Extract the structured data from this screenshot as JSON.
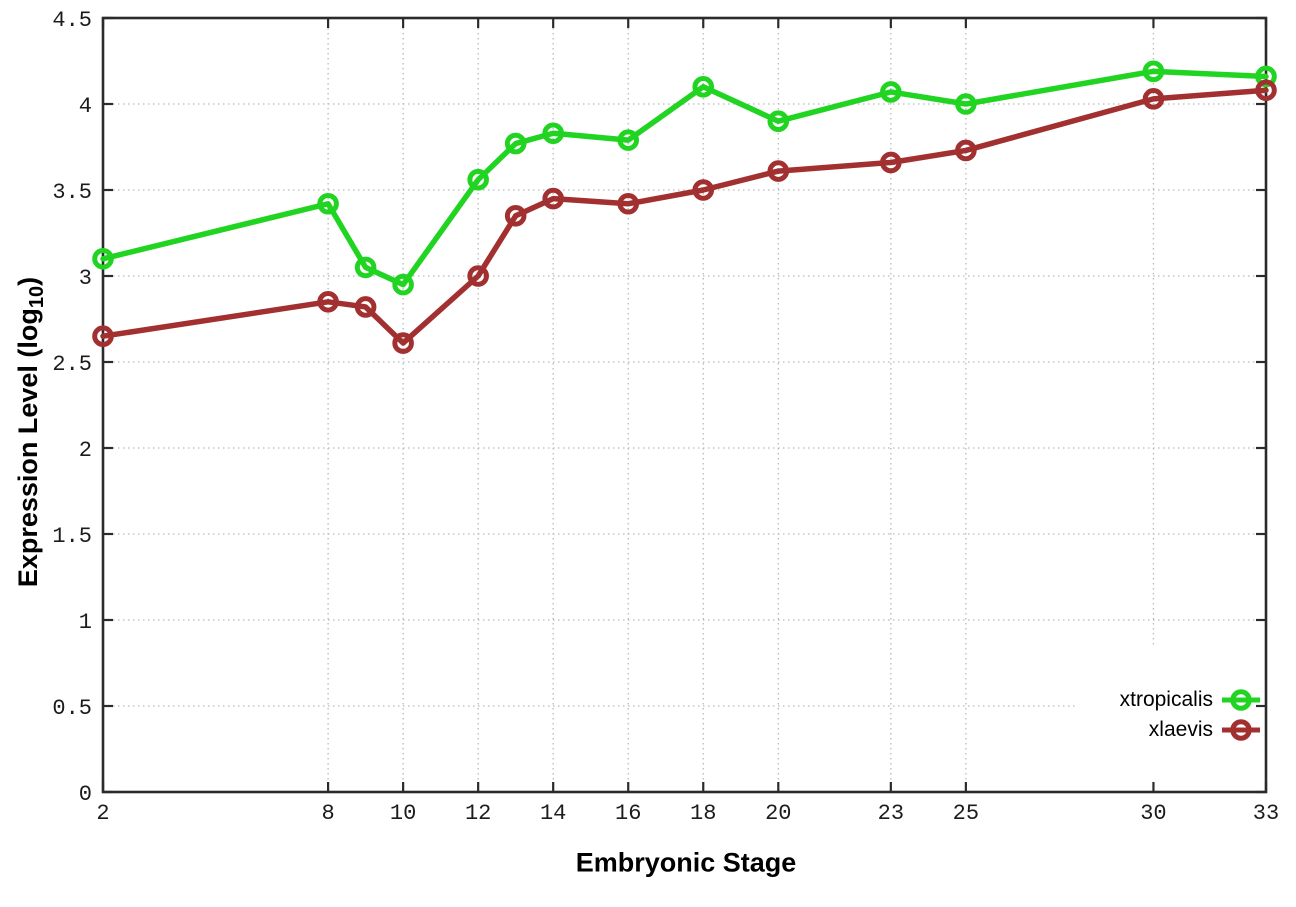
{
  "chart_data": {
    "type": "line",
    "title": "",
    "xlabel": "Embryonic Stage",
    "ylabel": {
      "main": "Expression Level (log",
      "sub": "10",
      "close": ")"
    },
    "x": [
      2,
      8,
      9,
      10,
      12,
      13,
      14,
      16,
      18,
      20,
      23,
      25,
      30,
      33
    ],
    "series": [
      {
        "name": "xtropicalis",
        "color": "#22d422",
        "values": [
          3.1,
          3.42,
          3.05,
          2.95,
          3.56,
          3.77,
          3.83,
          3.79,
          4.1,
          3.9,
          4.07,
          4.0,
          4.19,
          4.16
        ]
      },
      {
        "name": "xlaevis",
        "color": "#a33030",
        "values": [
          2.65,
          2.85,
          2.82,
          2.61,
          3.0,
          3.35,
          3.45,
          3.42,
          3.5,
          3.61,
          3.66,
          3.73,
          4.03,
          4.08
        ]
      }
    ],
    "xlim": [
      2,
      33
    ],
    "ylim": [
      0,
      4.5
    ],
    "xticks": {
      "values": [
        2,
        8,
        10,
        12,
        14,
        16,
        18,
        20,
        23,
        25,
        30,
        33
      ],
      "labels": [
        "2",
        "8",
        "10",
        "12",
        "14",
        "16",
        "18",
        "20",
        "23",
        "25",
        "30",
        "33"
      ]
    },
    "yticks": {
      "values": [
        0,
        0.5,
        1,
        1.5,
        2,
        2.5,
        3,
        3.5,
        4,
        4.5
      ],
      "labels": [
        "0",
        "0.5",
        "1",
        "1.5",
        "2",
        "2.5",
        "3",
        "3.5",
        "4",
        "4.5"
      ]
    },
    "grid": true,
    "grid_style": "dotted",
    "legend_position": "bottom-right-inside",
    "marker": "open-circle",
    "background": "#ffffff"
  }
}
